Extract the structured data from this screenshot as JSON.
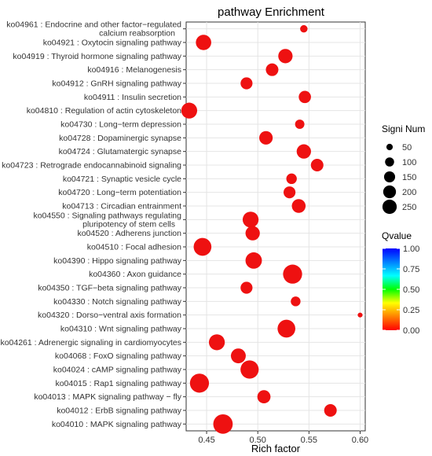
{
  "chart_data": {
    "type": "scatter",
    "title": "pathway Enrichment",
    "xlabel": "Rich factor",
    "ylabel": "",
    "xlim": [
      0.43,
      0.605
    ],
    "xticks": [
      0.45,
      0.5,
      0.55,
      0.6
    ],
    "xtick_labels": [
      "0.45",
      "0.50",
      "0.55",
      "0.60"
    ],
    "grid": true,
    "categories": [
      "ko04961 : Endocrine and other factor−regulated calcium reabsorption",
      "ko04921 : Oxytocin signaling pathway",
      "ko04919 : Thyroid hormone signaling pathway",
      "ko04916 : Melanogenesis",
      "ko04912 : GnRH signaling pathway",
      "ko04911 : Insulin secretion",
      "ko04810 : Regulation of actin cytoskeleton",
      "ko04730 : Long−term depression",
      "ko04728 : Dopaminergic synapse",
      "ko04724 : Glutamatergic synapse",
      "ko04723 : Retrograde endocannabinoid signaling",
      "ko04721 : Synaptic vesicle cycle",
      "ko04720 : Long−term potentiation",
      "ko04713 : Circadian entrainment",
      "ko04550 : Signaling pathways regulating pluripotency of stem cells",
      "ko04520 : Adherens junction",
      "ko04510 : Focal adhesion",
      "ko04390 : Hippo signaling pathway",
      "ko04360 : Axon guidance",
      "ko04350 : TGF−beta signaling pathway",
      "ko04330 : Notch signaling pathway",
      "ko04320 : Dorso−ventral axis formation",
      "ko04310 : Wnt signaling pathway",
      "ko04261 : Adrenergic signaling in cardiomyocytes",
      "ko04068 : FoxO signaling pathway",
      "ko04024 : cAMP signaling pathway",
      "ko04015 : Rap1 signaling pathway",
      "ko04013 : MAPK signaling pathway − fly",
      "ko04012 : ErbB signaling pathway",
      "ko04010 : MAPK signaling pathway"
    ],
    "label_lines": [
      [
        "ko04961 : Endocrine and other factor−regulated",
        "calcium reabsorption"
      ],
      [
        "ko04921 : Oxytocin signaling pathway"
      ],
      [
        "ko04919 : Thyroid hormone signaling pathway"
      ],
      [
        "ko04916 : Melanogenesis"
      ],
      [
        "ko04912 : GnRH signaling pathway"
      ],
      [
        "ko04911 : Insulin secretion"
      ],
      [
        "ko04810 : Regulation of actin cytoskeleton"
      ],
      [
        "ko04730 : Long−term depression"
      ],
      [
        "ko04728 : Dopaminergic synapse"
      ],
      [
        "ko04724 : Glutamatergic synapse"
      ],
      [
        "ko04723 : Retrograde endocannabinoid signaling"
      ],
      [
        "ko04721 : Synaptic vesicle cycle"
      ],
      [
        "ko04720 : Long−term potentiation"
      ],
      [
        "ko04713 : Circadian entrainment"
      ],
      [
        "ko04550 : Signaling pathways regulating",
        "pluripotency of stem cells"
      ],
      [
        "ko04520 : Adherens junction"
      ],
      [
        "ko04510 : Focal adhesion"
      ],
      [
        "ko04390 : Hippo signaling pathway"
      ],
      [
        "ko04360 : Axon guidance"
      ],
      [
        "ko04350 : TGF−beta signaling pathway"
      ],
      [
        "ko04330 : Notch signaling pathway"
      ],
      [
        "ko04320 : Dorso−ventral axis formation"
      ],
      [
        "ko04310 : Wnt signaling pathway"
      ],
      [
        "ko04261 : Adrenergic signaling in cardiomyocytes"
      ],
      [
        "ko04068 : FoxO signaling pathway"
      ],
      [
        "ko04024 : cAMP signaling pathway"
      ],
      [
        "ko04015 : Rap1 signaling pathway"
      ],
      [
        "ko04013 : MAPK signaling pathway − fly"
      ],
      [
        "ko04012 : ErbB signaling pathway"
      ],
      [
        "ko04010 : MAPK signaling pathway"
      ]
    ],
    "rich_factor": [
      0.545,
      0.447,
      0.527,
      0.514,
      0.489,
      0.546,
      0.433,
      0.541,
      0.508,
      0.545,
      0.558,
      0.533,
      0.531,
      0.54,
      0.493,
      0.495,
      0.446,
      0.496,
      0.534,
      0.489,
      0.537,
      0.6,
      0.528,
      0.46,
      0.481,
      0.492,
      0.443,
      0.506,
      0.571,
      0.466
    ],
    "signi_num": [
      35,
      150,
      130,
      100,
      90,
      95,
      160,
      55,
      115,
      130,
      100,
      70,
      90,
      120,
      160,
      130,
      200,
      170,
      230,
      90,
      60,
      15,
      200,
      160,
      140,
      210,
      230,
      110,
      100,
      240
    ],
    "qvalue": [
      0.0,
      0.0,
      0.0,
      0.0,
      0.0,
      0.0,
      0.0,
      0.0,
      0.0,
      0.0,
      0.0,
      0.0,
      0.0,
      0.0,
      0.0,
      0.0,
      0.0,
      0.0,
      0.0,
      0.0,
      0.0,
      0.0,
      0.0,
      0.0,
      0.0,
      0.0,
      0.0,
      0.0,
      0.0,
      0.0
    ],
    "point_color": "#ee1111",
    "size_legend": {
      "title": "Signi Num",
      "values": [
        50,
        100,
        150,
        200,
        250
      ],
      "labels": [
        "50",
        "100",
        "150",
        "200",
        "250"
      ]
    },
    "color_legend": {
      "title": "Qvalue",
      "range": [
        0.0,
        1.0
      ],
      "tick_values": [
        1.0,
        0.75,
        0.5,
        0.25,
        0.0
      ],
      "tick_labels": [
        "1.00",
        "0.75",
        "0.50",
        "0.25",
        "0.00"
      ],
      "gradient_colors": [
        "#ff0000",
        "#ff8000",
        "#ffff00",
        "#00ff00",
        "#00ffff",
        "#0080ff",
        "#0000ff"
      ]
    },
    "legend_position": "right"
  }
}
